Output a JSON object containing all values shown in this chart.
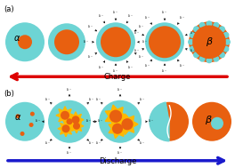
{
  "cyan": "#6DD4D4",
  "orange": "#E86010",
  "yellow": "#FFB800",
  "white": "#FFFFFF",
  "bg": "#FFFFFF",
  "red_arrow": "#DD0000",
  "blue_arrow": "#1A1ACC",
  "label_a": "(a)",
  "label_b": "(b)",
  "alpha_text": "α",
  "beta_text": "β",
  "charge_text": "Charge",
  "discharge_text": "Discharge",
  "fig_width": 2.64,
  "fig_height": 1.89,
  "dpi": 100
}
